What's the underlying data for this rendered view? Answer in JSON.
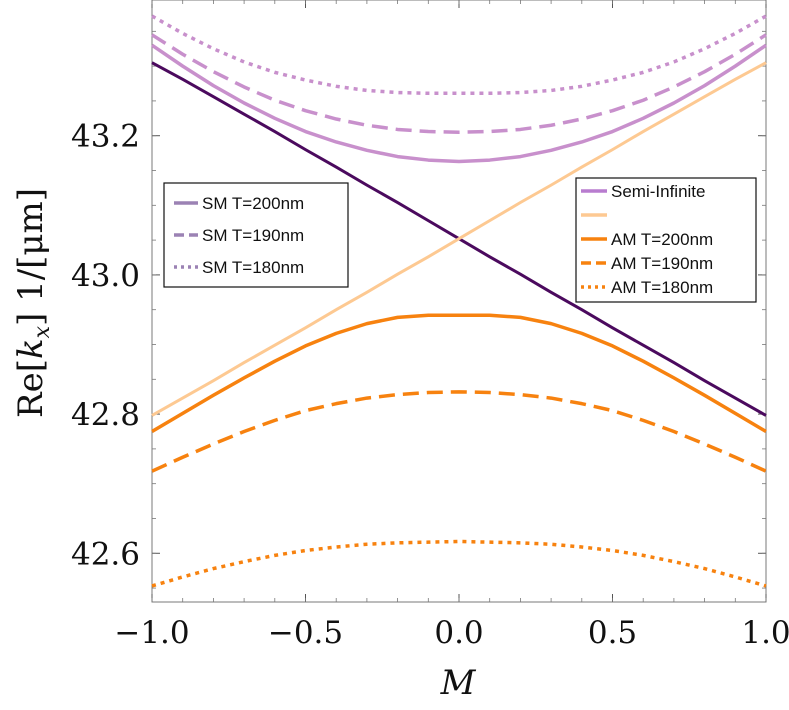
{
  "chart_data": {
    "type": "line",
    "title": "",
    "xlabel": "M",
    "ylabel": "Re[k_x] 1/[μm]",
    "xlim": [
      -1.0,
      1.0
    ],
    "ylim": [
      42.53,
      43.395
    ],
    "xticks": [
      -1.0,
      -0.5,
      0.0,
      0.5,
      1.0
    ],
    "xtick_labels": [
      "−1.0",
      "−0.5",
      "0.0",
      "0.5",
      "1.0"
    ],
    "yticks": [
      42.6,
      42.8,
      43.0,
      43.2
    ],
    "ytick_labels": [
      "42.6",
      "42.8",
      "43.0",
      "43.2"
    ],
    "grid": false,
    "x": [
      -1.0,
      -0.9,
      -0.8,
      -0.7,
      -0.6,
      -0.5,
      -0.4,
      -0.3,
      -0.2,
      -0.1,
      0.0,
      0.1,
      0.2,
      0.3,
      0.4,
      0.5,
      0.6,
      0.7,
      0.8,
      0.9,
      1.0
    ],
    "series": [
      {
        "name": "Semi-Infinite",
        "style": "solid",
        "width": 3,
        "color": "#4b0a5e",
        "values": [
          43.305,
          43.281,
          43.256,
          43.231,
          43.206,
          43.18,
          43.155,
          43.129,
          43.104,
          43.078,
          43.052,
          43.026,
          43.001,
          42.975,
          42.95,
          42.924,
          42.899,
          42.874,
          42.848,
          42.823,
          42.798
        ]
      },
      {
        "name": "Semi-Infinite",
        "style": "solid",
        "width": 3,
        "color": "#fdc992",
        "values": [
          42.798,
          42.823,
          42.848,
          42.874,
          42.899,
          42.924,
          42.95,
          42.975,
          43.001,
          43.026,
          43.052,
          43.078,
          43.104,
          43.129,
          43.155,
          43.18,
          43.206,
          43.231,
          43.256,
          43.281,
          43.305
        ]
      },
      {
        "name": "SM T=200nm",
        "style": "solid",
        "width": 3.5,
        "color": "#c890cc",
        "values": [
          43.33,
          43.3,
          43.272,
          43.247,
          43.225,
          43.206,
          43.191,
          43.179,
          43.17,
          43.165,
          43.163,
          43.165,
          43.17,
          43.179,
          43.191,
          43.206,
          43.225,
          43.247,
          43.272,
          43.3,
          43.33
        ]
      },
      {
        "name": "SM T=190nm",
        "style": "dashed",
        "width": 3.5,
        "color": "#c890cc",
        "values": [
          43.345,
          43.317,
          43.292,
          43.27,
          43.251,
          43.236,
          43.224,
          43.215,
          43.209,
          43.206,
          43.205,
          43.206,
          43.209,
          43.215,
          43.224,
          43.236,
          43.251,
          43.27,
          43.292,
          43.317,
          43.345
        ]
      },
      {
        "name": "SM T=180nm",
        "style": "dotted",
        "width": 3.5,
        "color": "#c890cc",
        "values": [
          43.372,
          43.347,
          43.325,
          43.306,
          43.291,
          43.28,
          43.271,
          43.265,
          43.262,
          43.261,
          43.261,
          43.261,
          43.262,
          43.265,
          43.271,
          43.28,
          43.291,
          43.306,
          43.325,
          43.347,
          43.372
        ]
      },
      {
        "name": "AM T=200nm",
        "style": "solid",
        "width": 3.5,
        "color": "#f7820f",
        "values": [
          42.775,
          42.801,
          42.827,
          42.852,
          42.876,
          42.898,
          42.916,
          42.93,
          42.939,
          42.942,
          42.942,
          42.942,
          42.939,
          42.93,
          42.916,
          42.898,
          42.876,
          42.852,
          42.827,
          42.801,
          42.775
        ]
      },
      {
        "name": "AM T=190nm",
        "style": "dashed",
        "width": 3.5,
        "color": "#f7820f",
        "values": [
          42.718,
          42.738,
          42.757,
          42.775,
          42.791,
          42.805,
          42.815,
          42.823,
          42.828,
          42.831,
          42.832,
          42.831,
          42.828,
          42.823,
          42.815,
          42.805,
          42.791,
          42.775,
          42.757,
          42.738,
          42.718
        ]
      },
      {
        "name": "AM T=180nm",
        "style": "dotted",
        "width": 3.5,
        "color": "#f7820f",
        "values": [
          42.553,
          42.566,
          42.578,
          42.588,
          42.597,
          42.604,
          42.609,
          42.613,
          42.615,
          42.616,
          42.617,
          42.616,
          42.615,
          42.613,
          42.609,
          42.604,
          42.597,
          42.588,
          42.578,
          42.566,
          42.553
        ]
      }
    ],
    "legends": [
      {
        "placement": "left",
        "entries": [
          {
            "label": "SM T=200nm",
            "style": "solid",
            "color": "#9b82b4"
          },
          {
            "label": "SM T=190nm",
            "style": "dashed",
            "color": "#9b82b4"
          },
          {
            "label": "SM T=180nm",
            "style": "dotted",
            "color": "#9b82b4"
          }
        ]
      },
      {
        "placement": "right",
        "entries": [
          {
            "label": "Semi-Infinite",
            "style": "solid",
            "color": "#b87ccf"
          },
          {
            "label": "",
            "style": "solid",
            "color": "#fdc992"
          },
          {
            "label": "AM T=200nm",
            "style": "solid",
            "color": "#f7820f"
          },
          {
            "label": "AM T=190nm",
            "style": "dashed",
            "color": "#f7820f"
          },
          {
            "label": "AM T=180nm",
            "style": "dotted",
            "color": "#f7820f"
          }
        ]
      }
    ]
  }
}
